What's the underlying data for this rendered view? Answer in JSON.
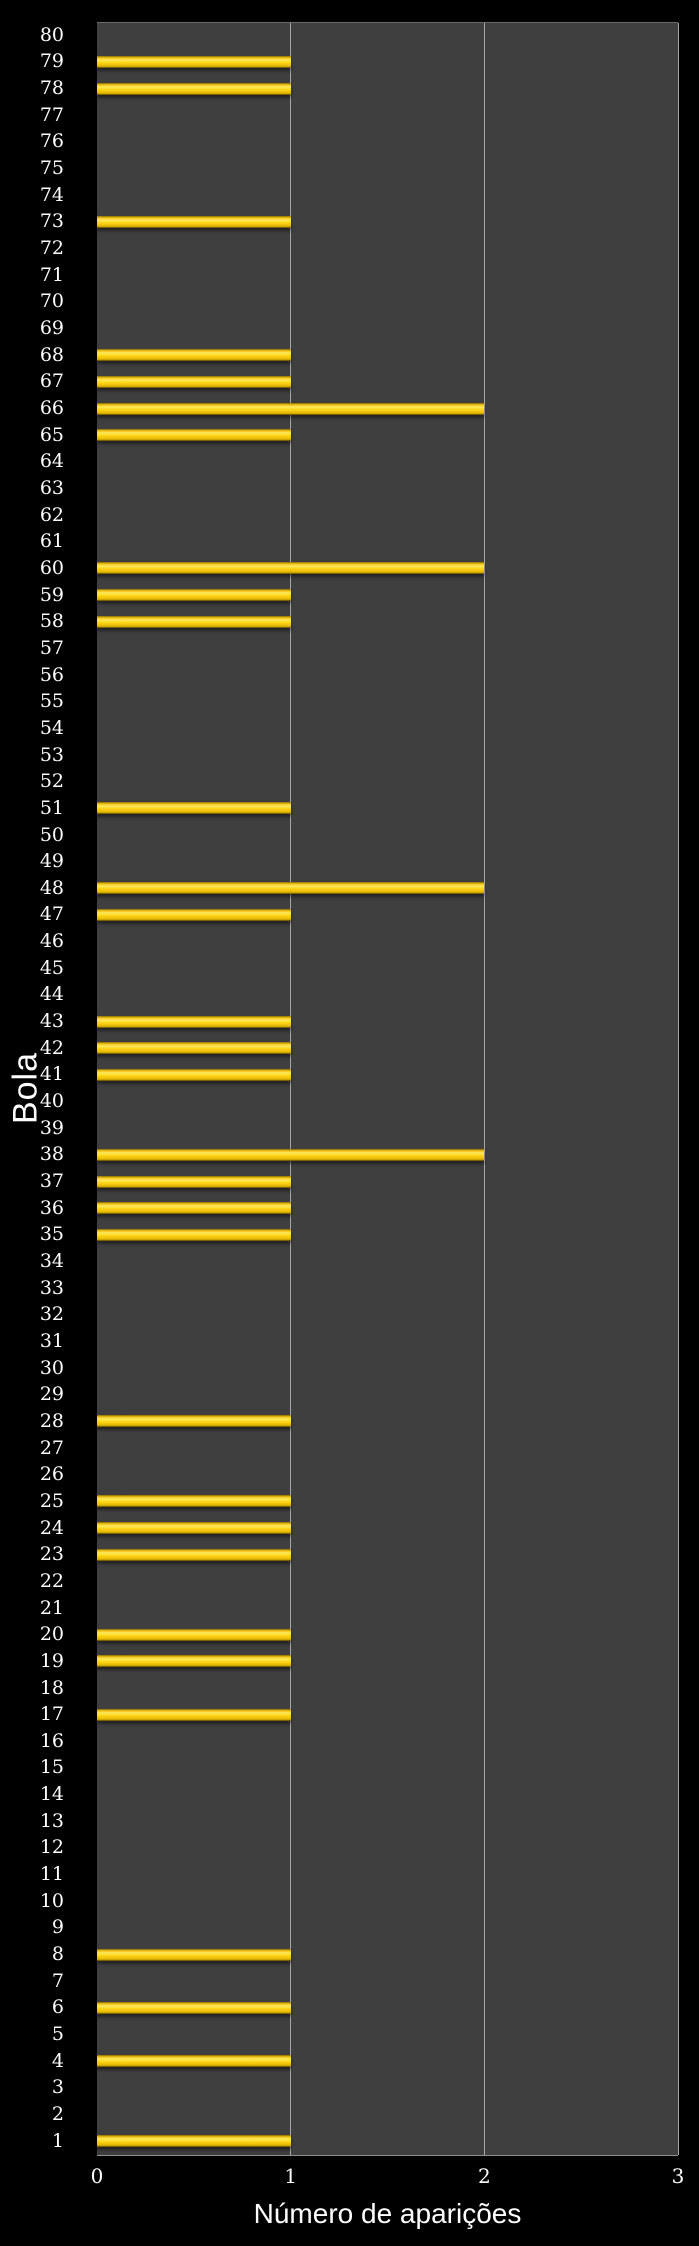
{
  "chart_data": {
    "type": "bar",
    "orientation": "horizontal",
    "title": "",
    "xlabel": "Número de aparições",
    "ylabel": "Bola",
    "xlim": [
      0,
      3
    ],
    "x_ticks": [
      0,
      1,
      2,
      3
    ],
    "grid": "vertical",
    "legend": "none",
    "categories": [
      80,
      79,
      78,
      77,
      76,
      75,
      74,
      73,
      72,
      71,
      70,
      69,
      68,
      67,
      66,
      65,
      64,
      63,
      62,
      61,
      60,
      59,
      58,
      57,
      56,
      55,
      54,
      53,
      52,
      51,
      50,
      49,
      48,
      47,
      46,
      45,
      44,
      43,
      42,
      41,
      40,
      39,
      38,
      37,
      36,
      35,
      34,
      33,
      32,
      31,
      30,
      29,
      28,
      27,
      26,
      25,
      24,
      23,
      22,
      21,
      20,
      19,
      18,
      17,
      16,
      15,
      14,
      13,
      12,
      11,
      10,
      9,
      8,
      7,
      6,
      5,
      4,
      3,
      2,
      1
    ],
    "values": [
      0,
      1,
      1,
      0,
      0,
      0,
      0,
      1,
      0,
      0,
      0,
      0,
      1,
      1,
      2,
      1,
      0,
      0,
      0,
      0,
      2,
      1,
      1,
      0,
      0,
      0,
      0,
      0,
      0,
      1,
      0,
      0,
      2,
      1,
      0,
      0,
      0,
      1,
      1,
      1,
      0,
      0,
      2,
      1,
      1,
      1,
      0,
      0,
      0,
      0,
      0,
      0,
      1,
      0,
      0,
      1,
      1,
      1,
      0,
      0,
      1,
      1,
      0,
      1,
      0,
      0,
      0,
      0,
      0,
      0,
      0,
      0,
      1,
      0,
      1,
      0,
      1,
      0,
      0,
      1
    ],
    "colors": {
      "bar": "#FFD718",
      "bar_highlight": "#FFE863",
      "bar_shadow": "#4A3A00",
      "plot_background": "#3F3F3F",
      "page_background": "#000000",
      "gridline": "#A8A8A8",
      "text": "#FFFFFF"
    }
  }
}
